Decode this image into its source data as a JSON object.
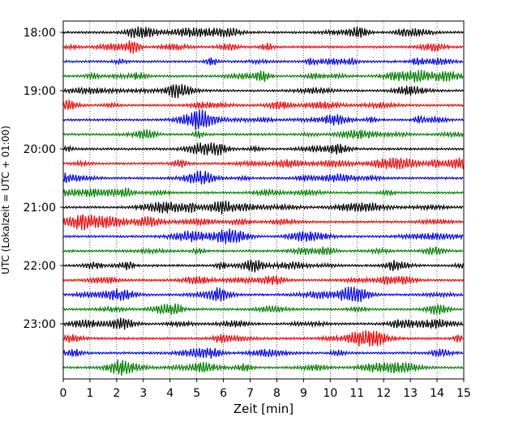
{
  "chart_data": {
    "type": "line",
    "title": "",
    "xlabel": "Zeit  [min]",
    "ylabel": "UTC (Lokalzeit = UTC + 01:00)",
    "xlim": [
      0,
      15
    ],
    "x_ticks": [
      "0",
      "1",
      "2",
      "3",
      "4",
      "5",
      "6",
      "7",
      "8",
      "9",
      "10",
      "11",
      "12",
      "13",
      "14",
      "15"
    ],
    "y_ticks": [
      "18:00",
      "19:00",
      "20:00",
      "21:00",
      "22:00",
      "23:00"
    ],
    "grid": "vertical dotted lines at each minute",
    "series_colors": [
      "#000000",
      "#ff0000",
      "#0000ff",
      "#008000"
    ],
    "traces": [
      {
        "start": "18:00",
        "color": "#000000"
      },
      {
        "start": "18:15",
        "color": "#ff0000"
      },
      {
        "start": "18:30",
        "color": "#0000ff"
      },
      {
        "start": "18:45",
        "color": "#008000"
      },
      {
        "start": "19:00",
        "color": "#000000"
      },
      {
        "start": "19:15",
        "color": "#ff0000"
      },
      {
        "start": "19:30",
        "color": "#0000ff"
      },
      {
        "start": "19:45",
        "color": "#008000"
      },
      {
        "start": "20:00",
        "color": "#000000"
      },
      {
        "start": "20:15",
        "color": "#ff0000"
      },
      {
        "start": "20:30",
        "color": "#0000ff"
      },
      {
        "start": "20:45",
        "color": "#008000"
      },
      {
        "start": "21:00",
        "color": "#000000"
      },
      {
        "start": "21:15",
        "color": "#ff0000"
      },
      {
        "start": "21:30",
        "color": "#0000ff"
      },
      {
        "start": "21:45",
        "color": "#008000"
      },
      {
        "start": "22:00",
        "color": "#000000"
      },
      {
        "start": "22:15",
        "color": "#ff0000"
      },
      {
        "start": "22:30",
        "color": "#0000ff"
      },
      {
        "start": "22:45",
        "color": "#008000"
      },
      {
        "start": "23:00",
        "color": "#000000"
      },
      {
        "start": "23:15",
        "color": "#ff0000"
      },
      {
        "start": "23:30",
        "color": "#0000ff"
      },
      {
        "start": "23:45",
        "color": "#008000"
      }
    ]
  }
}
